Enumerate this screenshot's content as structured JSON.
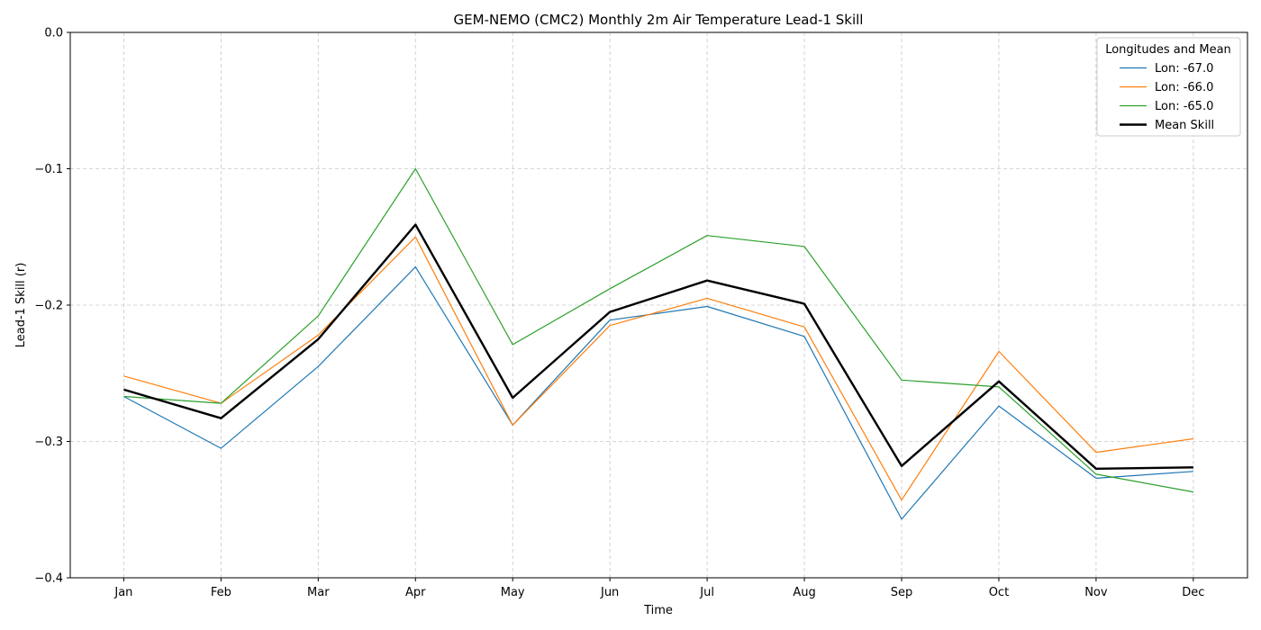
{
  "chart_data": {
    "type": "line",
    "title": "GEM-NEMO (CMC2) Monthly 2m Air Temperature Lead-1 Skill",
    "xlabel": "Time",
    "ylabel": "Lead-1 Skill (r)",
    "categories": [
      "Jan",
      "Feb",
      "Mar",
      "Apr",
      "May",
      "Jun",
      "Jul",
      "Aug",
      "Sep",
      "Oct",
      "Nov",
      "Dec"
    ],
    "ylim": [
      -0.4,
      0.0
    ],
    "yticks": [
      "0.0",
      "−0.1",
      "−0.2",
      "−0.3",
      "−0.4"
    ],
    "ytick_values": [
      0.0,
      -0.1,
      -0.2,
      -0.3,
      -0.4
    ],
    "grid": true,
    "legend": {
      "title": "Longitudes and Mean",
      "placement": "top-right"
    },
    "series": [
      {
        "name": "Lon: -67.0",
        "color": "#1f77b4",
        "values": [
          -0.267,
          -0.305,
          -0.245,
          -0.172,
          -0.288,
          -0.211,
          -0.201,
          -0.223,
          -0.357,
          -0.274,
          -0.327,
          -0.322
        ]
      },
      {
        "name": "Lon: -66.0",
        "color": "#ff7f0e",
        "values": [
          -0.252,
          -0.272,
          -0.222,
          -0.15,
          -0.288,
          -0.215,
          -0.195,
          -0.216,
          -0.343,
          -0.234,
          -0.308,
          -0.298
        ]
      },
      {
        "name": "Lon: -65.0",
        "color": "#2ca02c",
        "values": [
          -0.267,
          -0.272,
          -0.208,
          -0.1,
          -0.229,
          -0.188,
          -0.149,
          -0.157,
          -0.255,
          -0.26,
          -0.324,
          -0.337
        ]
      },
      {
        "name": "Mean Skill",
        "color": "#000000",
        "values": [
          -0.262,
          -0.283,
          -0.225,
          -0.141,
          -0.268,
          -0.205,
          -0.182,
          -0.199,
          -0.318,
          -0.256,
          -0.32,
          -0.319
        ],
        "bold": true
      }
    ]
  }
}
